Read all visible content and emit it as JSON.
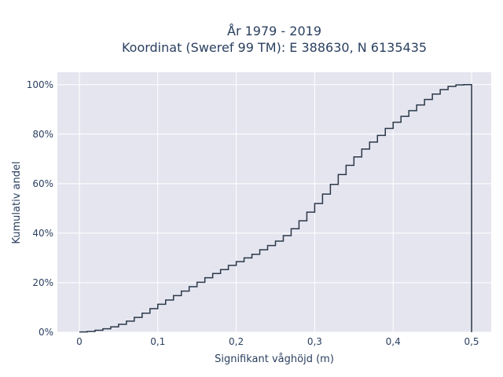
{
  "chart_data": {
    "type": "line",
    "step": true,
    "title_line1": "År 1979 - 2019",
    "title_line2": "Koordinat (Sweref 99 TM): E 388630, N 6135435",
    "xlabel": "Signifikant våghöjd (m)",
    "ylabel": "Kumulativ andel",
    "xlim": [
      -0.028,
      0.525
    ],
    "ylim": [
      0,
      1.05
    ],
    "grid": true,
    "colors": {
      "plot_bg": "#e5e5f0",
      "grid": "#ffffff",
      "line": "#2a3848",
      "text": "#2a3f5f"
    },
    "x_ticks": [
      {
        "value": 0,
        "label": "0"
      },
      {
        "value": 0.1,
        "label": "0,1"
      },
      {
        "value": 0.2,
        "label": "0,2"
      },
      {
        "value": 0.3,
        "label": "0,3"
      },
      {
        "value": 0.4,
        "label": "0,4"
      },
      {
        "value": 0.5,
        "label": "0,5"
      }
    ],
    "y_ticks": [
      {
        "value": 0,
        "label": "0%"
      },
      {
        "value": 0.2,
        "label": "20%"
      },
      {
        "value": 0.4,
        "label": "40%"
      },
      {
        "value": 0.6,
        "label": "60%"
      },
      {
        "value": 0.8,
        "label": "80%"
      },
      {
        "value": 1.0,
        "label": "100%"
      }
    ],
    "x": [
      0,
      0.01,
      0.02,
      0.03,
      0.04,
      0.05,
      0.06,
      0.07,
      0.08,
      0.09,
      0.1,
      0.11,
      0.12,
      0.13,
      0.14,
      0.15,
      0.16,
      0.17,
      0.18,
      0.19,
      0.2,
      0.21,
      0.22,
      0.23,
      0.24,
      0.25,
      0.26,
      0.27,
      0.28,
      0.29,
      0.3,
      0.31,
      0.32,
      0.33,
      0.34,
      0.35,
      0.36,
      0.37,
      0.38,
      0.39,
      0.4,
      0.41,
      0.42,
      0.43,
      0.44,
      0.45,
      0.46,
      0.47,
      0.48,
      0.49,
      0.5
    ],
    "y": [
      0.001,
      0.003,
      0.008,
      0.014,
      0.022,
      0.032,
      0.045,
      0.06,
      0.077,
      0.095,
      0.113,
      0.13,
      0.148,
      0.166,
      0.184,
      0.202,
      0.22,
      0.237,
      0.253,
      0.27,
      0.285,
      0.3,
      0.315,
      0.333,
      0.35,
      0.368,
      0.39,
      0.418,
      0.45,
      0.485,
      0.52,
      0.558,
      0.597,
      0.637,
      0.674,
      0.708,
      0.74,
      0.768,
      0.795,
      0.823,
      0.848,
      0.872,
      0.895,
      0.918,
      0.94,
      0.962,
      0.98,
      0.993,
      0.999,
      1.0,
      0.0
    ]
  }
}
